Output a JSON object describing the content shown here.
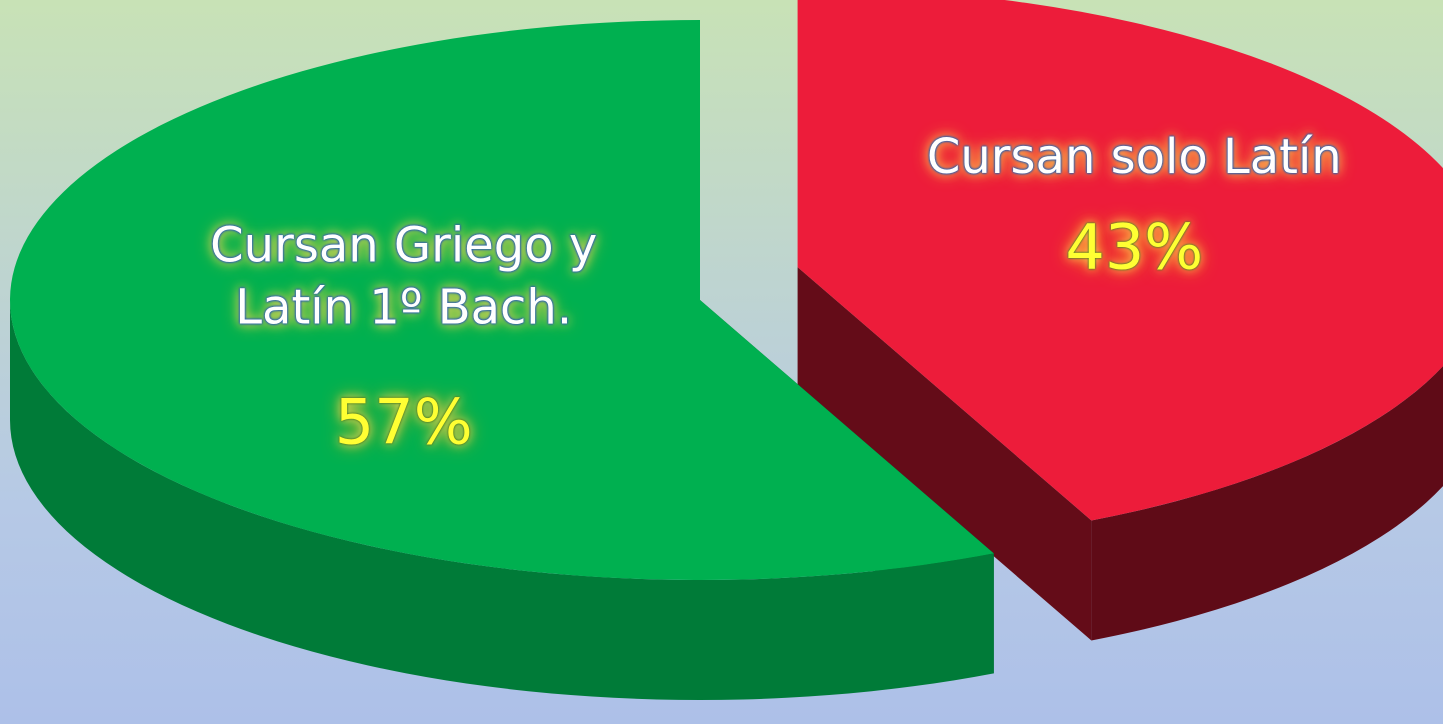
{
  "chart_data": {
    "type": "pie",
    "categories": [
      "Cursan Griego y Latín 1º Bach.",
      "Cursan solo Latín"
    ],
    "values": [
      57,
      43
    ],
    "value_labels": [
      "57%",
      "43%"
    ],
    "colors": [
      "#00b050",
      "#ed1c3a"
    ]
  }
}
